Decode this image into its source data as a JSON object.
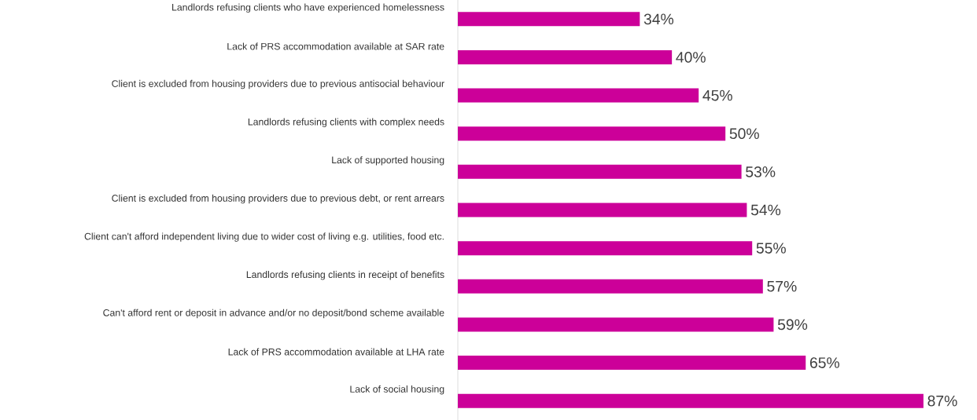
{
  "chart_data": {
    "type": "bar",
    "orientation": "horizontal",
    "color": "#cc0099",
    "categories": [
      "Landlords refusing clients who have experienced homelessness",
      "Lack of PRS accommodation available at SAR rate",
      "Client is excluded from housing providers due to previous antisocial behaviour",
      "Landlords refusing clients with complex needs",
      "Lack of supported housing",
      "Client is excluded from housing providers due to previous debt, or rent arrears",
      "Client can't afford independent living due to wider cost of living e.g. utilities, food etc.",
      "Landlords refusing clients in receipt of benefits",
      "Can't afford rent or deposit in advance and/or no deposit/bond scheme available",
      "Lack of PRS accommodation available at LHA rate",
      "Lack of social housing"
    ],
    "values": [
      34,
      40,
      45,
      50,
      53,
      54,
      55,
      57,
      59,
      65,
      87
    ],
    "value_labels": [
      "34%",
      "40%",
      "45%",
      "50%",
      "53%",
      "54%",
      "55%",
      "57%",
      "59%",
      "65%",
      "87%"
    ]
  }
}
